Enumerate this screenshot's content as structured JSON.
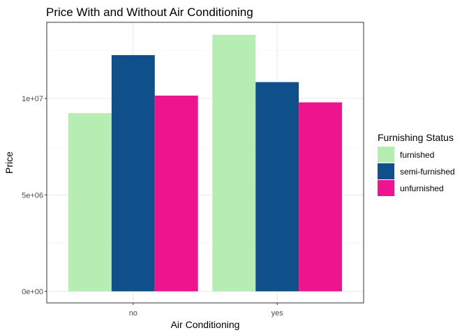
{
  "chart_data": {
    "type": "bar",
    "title": "Price With and Without Air Conditioning",
    "xlabel": "Air Conditioning",
    "ylabel": "Price",
    "categories": [
      "no",
      "yes"
    ],
    "series": [
      {
        "name": "furnished",
        "color": "#b5edb3",
        "values": [
          9240000,
          13300000
        ]
      },
      {
        "name": "semi-furnished",
        "color": "#10508a",
        "values": [
          12250000,
          10850000
        ]
      },
      {
        "name": "unfurnished",
        "color": "#ee148e",
        "values": [
          10150000,
          9800000
        ]
      }
    ],
    "ylim": [
      -600000,
      13950000
    ],
    "yticks": [
      0,
      5000000,
      10000000
    ],
    "ytick_labels": [
      "0e+00",
      "5e+06",
      "1e+07"
    ],
    "grid": true,
    "legend": {
      "title": "Furnishing Status",
      "position": "right"
    }
  }
}
